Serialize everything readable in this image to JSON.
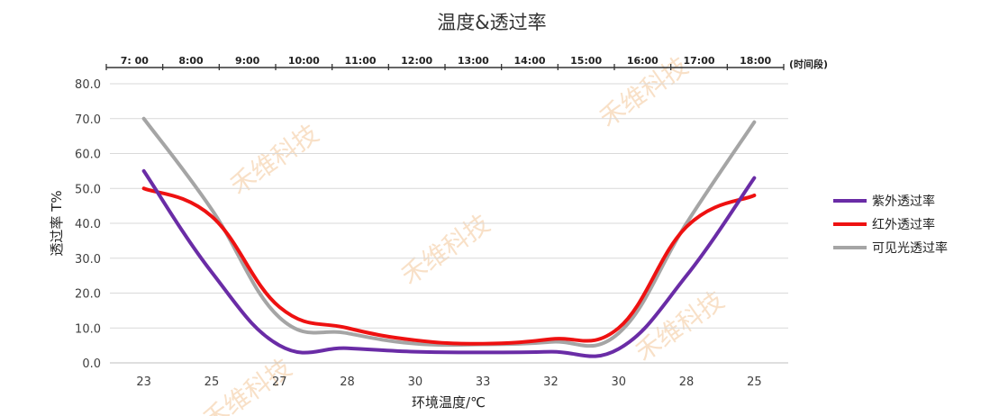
{
  "chart_data": {
    "type": "line",
    "title": "温度&透过率",
    "xlabel": "环境温度/℃",
    "ylabel": "透过率 T%",
    "ylim": [
      0,
      80
    ],
    "yticks": [
      "0.0",
      "10.0",
      "20.0",
      "30.0",
      "40.0",
      "50.0",
      "60.0",
      "70.0",
      "80.0"
    ],
    "grid": true,
    "legend_position": "right",
    "categories": [
      "23",
      "25",
      "27",
      "28",
      "30",
      "33",
      "32",
      "30",
      "28",
      "25"
    ],
    "top_axis": {
      "labels": [
        "7: 00",
        "8:00",
        "9:00",
        "10:00",
        "11:00",
        "12:00",
        "13:00",
        "14:00",
        "15:00",
        "16:00",
        "17:00",
        "18:00"
      ],
      "unit_label": "(时间段)"
    },
    "series": [
      {
        "name": "紫外透过率",
        "color": "#6a2ca6",
        "values": [
          55,
          26,
          5,
          4.2,
          3.2,
          3.0,
          3.2,
          4.0,
          25,
          53
        ]
      },
      {
        "name": "红外透过率",
        "color": "#ee1111",
        "values": [
          50,
          42,
          16,
          10,
          6.5,
          5.5,
          6.8,
          10,
          39,
          48
        ]
      },
      {
        "name": "可见光透过率",
        "color": "#a5a5a5",
        "values": [
          70,
          44,
          13,
          8.5,
          5.5,
          5.3,
          6.0,
          8.5,
          40,
          69
        ]
      }
    ],
    "watermark": "禾维科技"
  }
}
